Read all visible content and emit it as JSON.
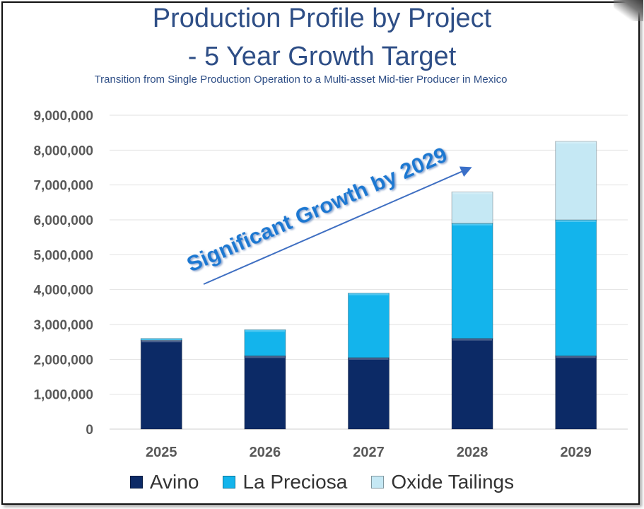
{
  "chart_data": {
    "type": "bar",
    "stacked": true,
    "title": "Production Profile by Project",
    "title_line2": "- 5 Year Growth Target",
    "subtitle": "Transition from Single Production Operation to a Multi-asset Mid-tier Producer in Mexico",
    "categories": [
      "2025",
      "2026",
      "2027",
      "2028",
      "2029"
    ],
    "series": [
      {
        "name": "Avino",
        "color": "#0c2a66",
        "values": [
          2550000,
          2100000,
          2050000,
          2600000,
          2100000
        ]
      },
      {
        "name": "La Preciosa",
        "color": "#13b4ec",
        "values": [
          50000,
          750000,
          1850000,
          3300000,
          3900000
        ]
      },
      {
        "name": "Oxide Tailings",
        "color": "#c5e8f4",
        "values": [
          0,
          0,
          0,
          900000,
          2250000
        ]
      }
    ],
    "ylim": [
      0,
      9000000
    ],
    "yticks": [
      "0",
      "1,000,000",
      "2,000,000",
      "3,000,000",
      "4,000,000",
      "5,000,000",
      "6,000,000",
      "7,000,000",
      "8,000,000",
      "9,000,000"
    ],
    "ytick_values": [
      0,
      1000000,
      2000000,
      3000000,
      4000000,
      5000000,
      6000000,
      7000000,
      8000000,
      9000000
    ],
    "grid": true,
    "legend_position": "bottom",
    "annotation": "Significant Growth by 2029"
  }
}
